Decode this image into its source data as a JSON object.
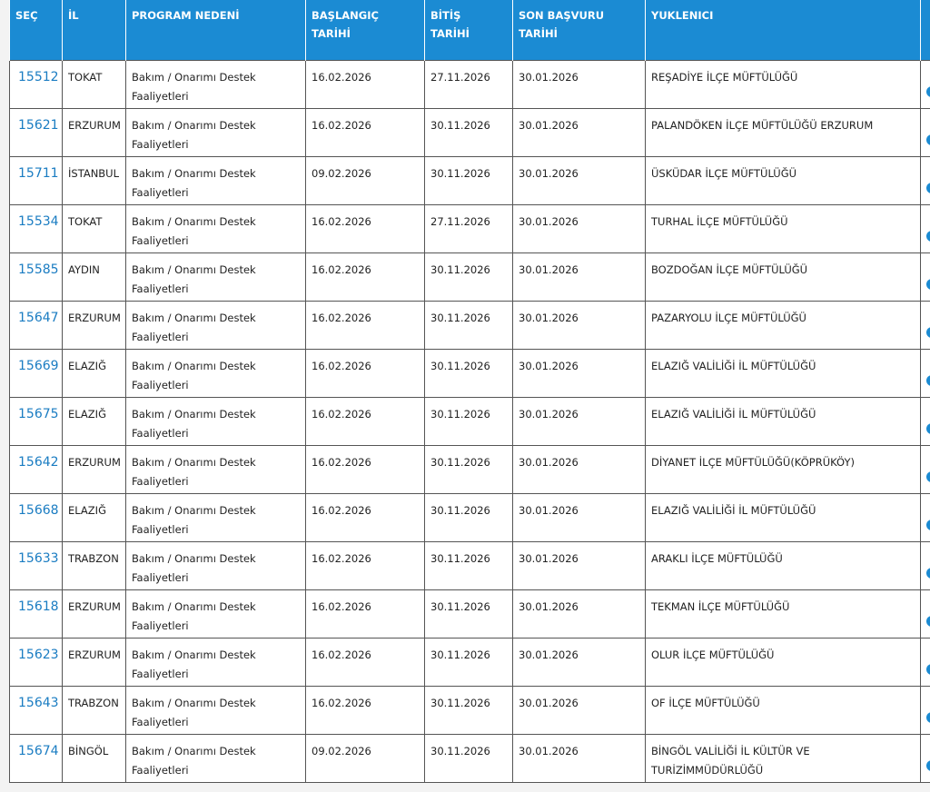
{
  "table": {
    "header": [
      "SEÇ",
      "İL",
      "PROGRAM NEDENİ",
      "BAŞLANGIÇ\nTARİHİ",
      "BİTİŞ\nTARİHİ",
      "SON BAŞVURU\nTARİHİ",
      "YUKLENICI"
    ],
    "rows": [
      [
        "15512",
        "TOKAT",
        "Bakım / Onarımı Destek Faaliyetleri",
        "16.02.2026",
        "27.11.2026",
        "30.01.2026",
        "REŞADİYE İLÇE MÜFTÜLÜĞÜ"
      ],
      [
        "15621",
        "ERZURUM",
        "Bakım / Onarımı Destek Faaliyetleri",
        "16.02.2026",
        "30.11.2026",
        "30.01.2026",
        "PALANDÖKEN İLÇE MÜFTÜLÜĞÜ ERZURUM"
      ],
      [
        "15711",
        "İSTANBUL",
        "Bakım / Onarımı Destek Faaliyetleri",
        "09.02.2026",
        "30.11.2026",
        "30.01.2026",
        "ÜSKÜDAR İLÇE MÜFTÜLÜĞÜ"
      ],
      [
        "15534",
        "TOKAT",
        "Bakım / Onarımı Destek Faaliyetleri",
        "16.02.2026",
        "27.11.2026",
        "30.01.2026",
        "TURHAL İLÇE MÜFTÜLÜĞÜ"
      ],
      [
        "15585",
        "AYDIN",
        "Bakım / Onarımı Destek Faaliyetleri",
        "16.02.2026",
        "30.11.2026",
        "30.01.2026",
        "BOZDOĞAN İLÇE MÜFTÜLÜĞÜ"
      ],
      [
        "15647",
        "ERZURUM",
        "Bakım / Onarımı Destek Faaliyetleri",
        "16.02.2026",
        "30.11.2026",
        "30.01.2026",
        "PAZARYOLU İLÇE MÜFTÜLÜĞÜ"
      ],
      [
        "15669",
        "ELAZIĞ",
        "Bakım / Onarımı Destek Faaliyetleri",
        "16.02.2026",
        "30.11.2026",
        "30.01.2026",
        "ELAZIĞ VALİLİĞİ İL MÜFTÜLÜĞÜ"
      ],
      [
        "15675",
        "ELAZIĞ",
        "Bakım / Onarımı Destek Faaliyetleri",
        "16.02.2026",
        "30.11.2026",
        "30.01.2026",
        "ELAZIĞ VALİLİĞİ İL MÜFTÜLÜĞÜ"
      ],
      [
        "15642",
        "ERZURUM",
        "Bakım / Onarımı Destek Faaliyetleri",
        "16.02.2026",
        "30.11.2026",
        "30.01.2026",
        "DİYANET İLÇE MÜFTÜLÜĞÜ(KÖPRÜKÖY)"
      ],
      [
        "15668",
        "ELAZIĞ",
        "Bakım / Onarımı Destek Faaliyetleri",
        "16.02.2026",
        "30.11.2026",
        "30.01.2026",
        "ELAZIĞ VALİLİĞİ İL MÜFTÜLÜĞÜ"
      ],
      [
        "15633",
        "TRABZON",
        "Bakım / Onarımı Destek Faaliyetleri",
        "16.02.2026",
        "30.11.2026",
        "30.01.2026",
        "ARAKLI İLÇE MÜFTÜLÜĞÜ"
      ],
      [
        "15618",
        "ERZURUM",
        "Bakım / Onarımı Destek Faaliyetleri",
        "16.02.2026",
        "30.11.2026",
        "30.01.2026",
        "TEKMAN İLÇE MÜFTÜLÜĞÜ"
      ],
      [
        "15623",
        "ERZURUM",
        "Bakım / Onarımı Destek Faaliyetleri",
        "16.02.2026",
        "30.11.2026",
        "30.01.2026",
        "OLUR İLÇE MÜFTÜLÜĞÜ"
      ],
      [
        "15643",
        "TRABZON",
        "Bakım / Onarımı Destek Faaliyetleri",
        "16.02.2026",
        "30.11.2026",
        "30.01.2026",
        "OF İLÇE MÜFTÜLÜĞÜ"
      ],
      [
        "15674",
        "BİNGÖL",
        "Bakım / Onarımı Destek Faaliyetleri",
        "09.02.2026",
        "30.11.2026",
        "30.01.2026",
        "BİNGÖL VALİLİĞİ İL KÜLTÜR VE TURİZİMMÜDÜRLÜĞÜ"
      ]
    ]
  }
}
